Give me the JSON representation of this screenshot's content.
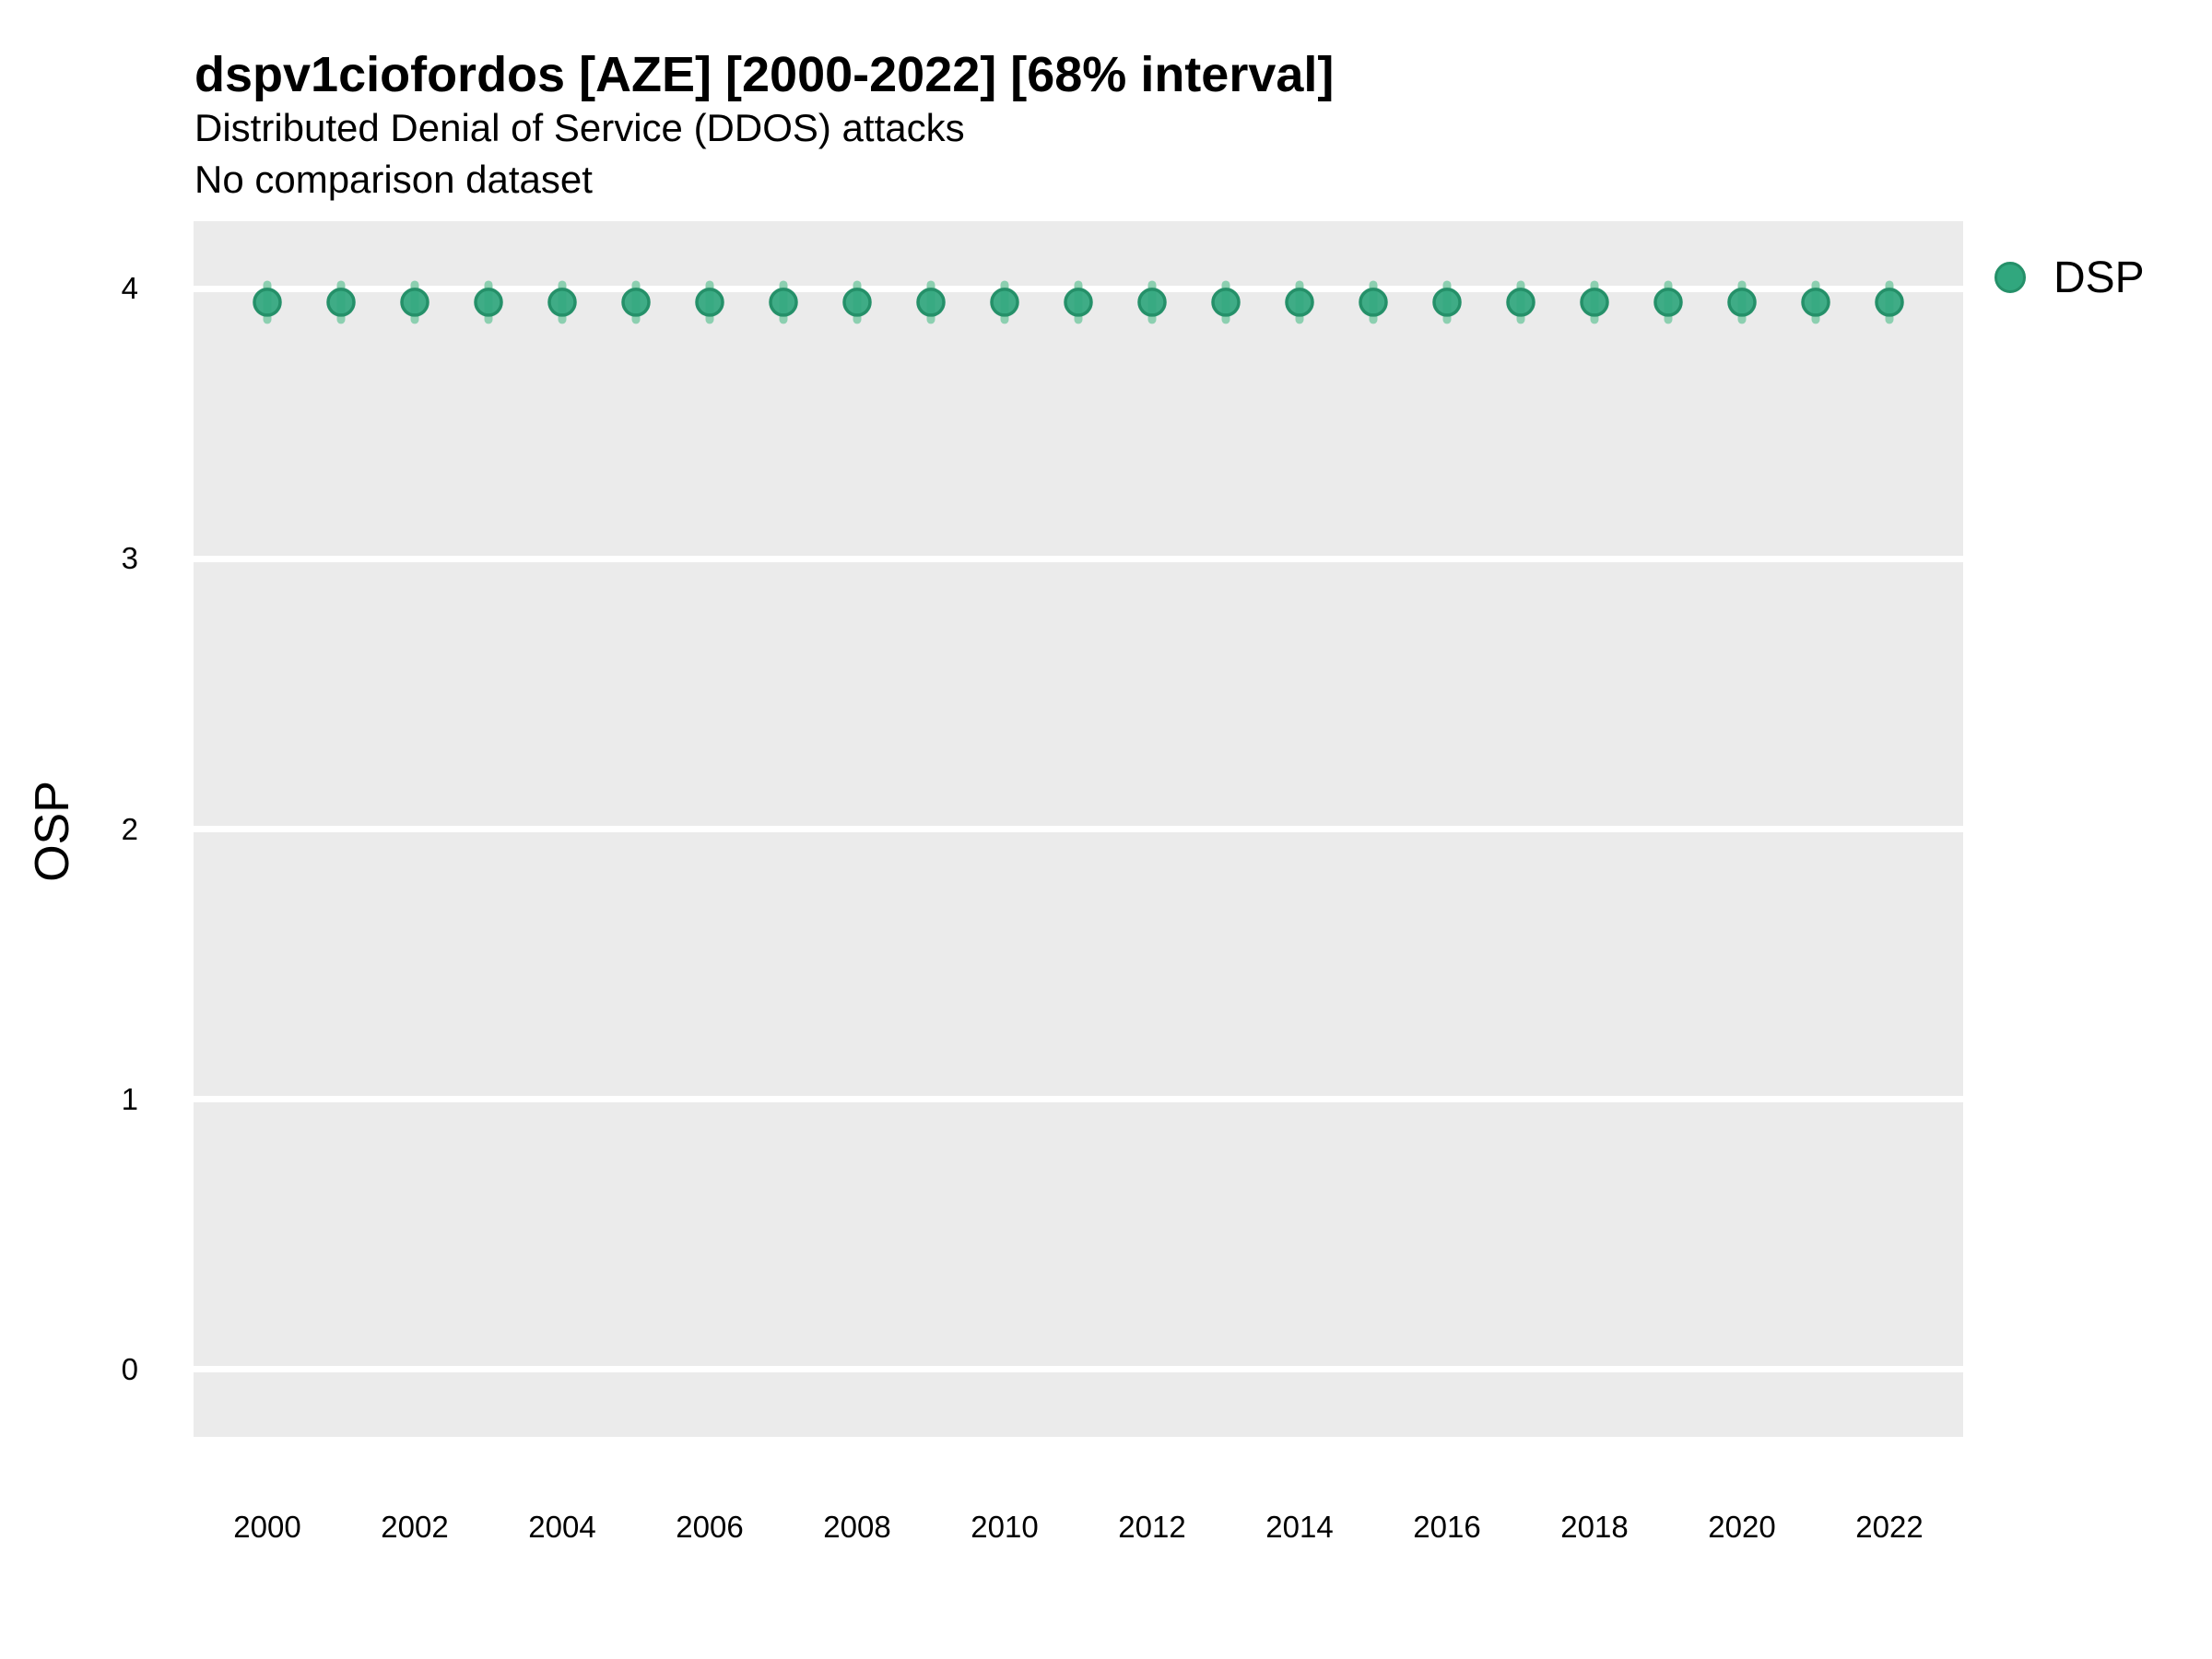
{
  "header": {
    "title": "dspv1ciofordos [AZE] [2000-2022] [68% interval]",
    "subtitle": "Distributed Denial of Service (DDOS) attacks",
    "note": "No comparison dataset"
  },
  "colors": {
    "panel_bg": "#ebebeb",
    "gridline": "#ffffff",
    "point_fill": "#31a77e",
    "point_stroke": "#259069",
    "interval_fill": "#8ccfb0",
    "text": "#000000"
  },
  "chart_data": {
    "type": "scatter",
    "title": "dspv1ciofordos [AZE] [2000-2022] [68% interval]",
    "subtitle": "Distributed Denial of Service (DDOS) attacks",
    "note": "No comparison dataset",
    "xlabel": "",
    "ylabel": "OSP",
    "interval_label": "68% interval",
    "grid": "horizontal-major-only",
    "legend_position": "right-top",
    "xlim": [
      1999,
      2023
    ],
    "ylim": [
      -0.25,
      4.25
    ],
    "x_ticks": [
      2000,
      2002,
      2004,
      2006,
      2008,
      2010,
      2012,
      2014,
      2016,
      2018,
      2020,
      2022
    ],
    "y_ticks": [
      0,
      1,
      2,
      3,
      4
    ],
    "series": [
      {
        "name": "DSP",
        "x": [
          2000,
          2001,
          2002,
          2003,
          2004,
          2005,
          2006,
          2007,
          2008,
          2009,
          2010,
          2011,
          2012,
          2013,
          2014,
          2015,
          2016,
          2017,
          2018,
          2019,
          2020,
          2021,
          2022
        ],
        "y": [
          3.95,
          3.95,
          3.95,
          3.95,
          3.95,
          3.95,
          3.95,
          3.95,
          3.95,
          3.95,
          3.95,
          3.95,
          3.95,
          3.95,
          3.95,
          3.95,
          3.95,
          3.95,
          3.95,
          3.95,
          3.95,
          3.95,
          3.95
        ],
        "y_lower": [
          3.87,
          3.87,
          3.87,
          3.87,
          3.87,
          3.87,
          3.87,
          3.87,
          3.87,
          3.87,
          3.87,
          3.87,
          3.87,
          3.87,
          3.87,
          3.87,
          3.87,
          3.87,
          3.87,
          3.87,
          3.87,
          3.87,
          3.87
        ],
        "y_upper": [
          4.03,
          4.03,
          4.03,
          4.03,
          4.03,
          4.03,
          4.03,
          4.03,
          4.03,
          4.03,
          4.03,
          4.03,
          4.03,
          4.03,
          4.03,
          4.03,
          4.03,
          4.03,
          4.03,
          4.03,
          4.03,
          4.03,
          4.03
        ]
      }
    ]
  }
}
